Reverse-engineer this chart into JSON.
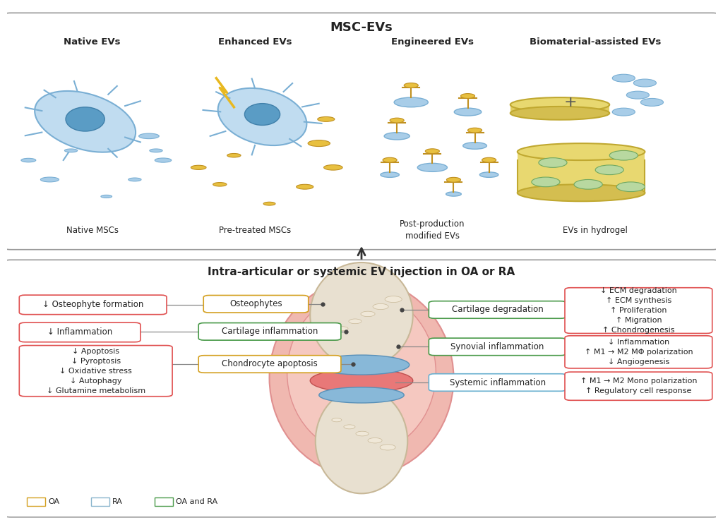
{
  "bg_color": "#ffffff",
  "top_panel": {
    "title": "MSC-EVs",
    "cols": [
      {
        "label": "Native EVs",
        "sublabel": "Native MSCs"
      },
      {
        "label": "Enhanced EVs",
        "sublabel": "Pre-treated MSCs"
      },
      {
        "label": "Engineered EVs",
        "sublabel": "Post-production\nmodified EVs"
      },
      {
        "label": "Biomaterial-assisted EVs",
        "sublabel": "EVs in hydrogel"
      }
    ]
  },
  "bottom_panel": {
    "title": "Intra-articular or systemic EV injection in OA or RA",
    "legend": [
      {
        "color": "#d4a020",
        "label": "OA"
      },
      {
        "color": "#89b4cc",
        "label": "RA"
      },
      {
        "color": "#4a9a4a",
        "label": "OA and RA"
      }
    ]
  }
}
